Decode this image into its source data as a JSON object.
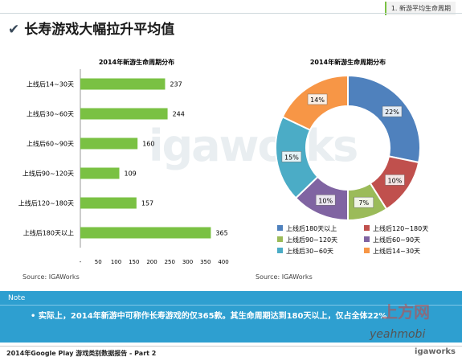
{
  "breadcrumb": "1.  新游平均生命周期",
  "page_title": "长寿游戏大幅拉升平均值",
  "watermark": "igaworks",
  "note_label": "Note",
  "note_text": "实际上，2014年新游中可称作长寿游戏的仅365款。其生命周期达到180天以上，仅占全体22%",
  "footer_text": "2014年Google Play 游戏类别数据报告 - Part 2",
  "footer_logo": "igaworks",
  "overlay_watermark_1": "上方网",
  "overlay_watermark_2": "yeahmobi",
  "colors": {
    "bar": "#7ac143",
    "note_bar": "#2e9fd0"
  },
  "chart_data": [
    {
      "type": "bar",
      "orientation": "horizontal",
      "title": "2014年新游生命周期分布",
      "source": "Source: IGAWorks",
      "categories": [
        "上线后14~30天",
        "上线后30~60天",
        "上线后60~90天",
        "上线后90~120天",
        "上线后120~180天",
        "上线后180天以上"
      ],
      "values": [
        237,
        244,
        160,
        109,
        157,
        365
      ],
      "xlim": [
        0,
        400
      ],
      "xticks": [
        "-",
        "50",
        "100",
        "150",
        "200",
        "250",
        "300",
        "350",
        "400"
      ],
      "grid": false
    },
    {
      "type": "pie",
      "donut": true,
      "title": "2014年新游生命周期分布",
      "source": "Source: IGAWorks",
      "slices": [
        {
          "label": "上线后180天以上",
          "value": 22,
          "display": "22%",
          "color": "#4f81bd"
        },
        {
          "label": "上线后120~180天",
          "value": 10,
          "display": "10%",
          "color": "#c0504d"
        },
        {
          "label": "上线后90~120天",
          "value": 7,
          "display": "7%",
          "color": "#9bbb59"
        },
        {
          "label": "上线后60~90天",
          "value": 10,
          "display": "10%",
          "color": "#8064a2"
        },
        {
          "label": "上线后30~60天",
          "value": 15,
          "display": "15%",
          "color": "#4bacc6"
        },
        {
          "label": "上线后14~30天",
          "value": 14,
          "display": "14%",
          "color": "#f79646"
        }
      ],
      "legend_position": "bottom"
    }
  ]
}
